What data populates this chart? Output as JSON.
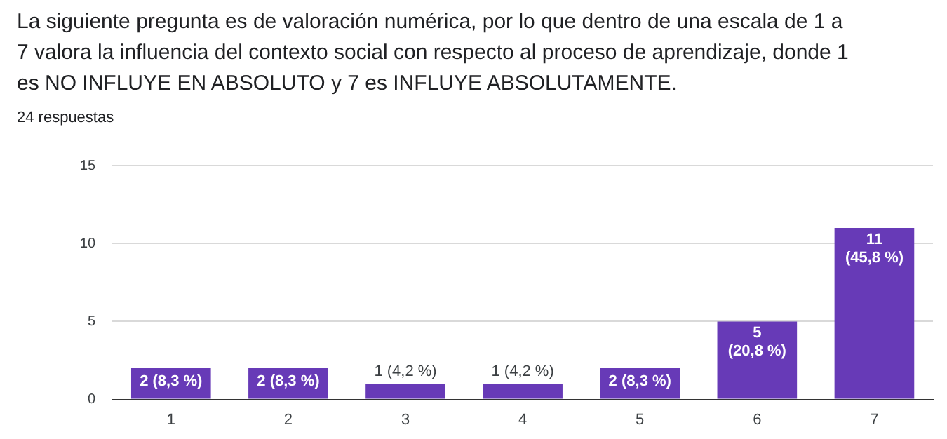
{
  "chart_data": {
    "type": "bar",
    "title": "La siguiente pregunta es de valoración numérica, por lo que dentro de una escala de 1 a 7 valora la influencia del contexto social con respecto al proceso de aprendizaje, donde 1 es NO INFLUYE EN ABSOLUTO y 7 es INFLUYE ABSOLUTAMENTE.",
    "subtitle": "24 respuestas",
    "categories": [
      "1",
      "2",
      "3",
      "4",
      "5",
      "6",
      "7"
    ],
    "values": [
      2,
      2,
      1,
      1,
      2,
      5,
      11
    ],
    "value_labels": [
      "2 (8,3 %)",
      "2 (8,3 %)",
      "1 (4,2 %)",
      "1 (4,2 %)",
      "2 (8,3 %)",
      "5 (20,8 %)",
      "11 (45,8 %)"
    ],
    "color": "#673ab7",
    "ylim": [
      0,
      15
    ],
    "yticks": [
      0,
      5,
      10,
      15
    ],
    "grid": "y",
    "legend": false
  }
}
